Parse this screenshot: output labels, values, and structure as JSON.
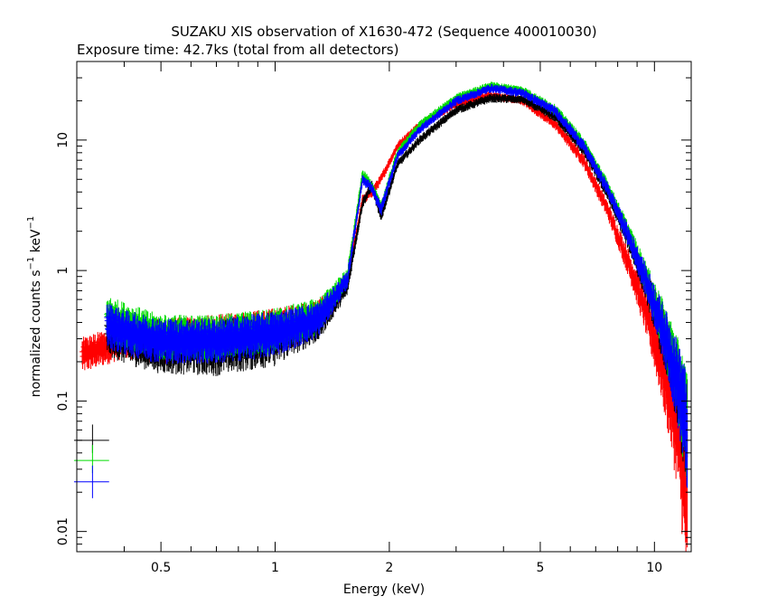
{
  "chart_data": {
    "type": "scatter",
    "title": "SUZAKU XIS observation of X1630-472 (Sequence 400010030)",
    "subtitle": "Exposure time: 42.7ks (total from all detectors)",
    "xlabel": "Energy (keV)",
    "ylabel": {
      "base": "normalized counts s",
      "exp1": "−1",
      "mid": " keV",
      "exp2": "−1"
    },
    "x_scale": "log",
    "y_scale": "log",
    "xlim": [
      0.3,
      12.5
    ],
    "ylim": [
      0.007,
      40
    ],
    "x_ticks": [
      {
        "value": 0.5,
        "label": "0.5"
      },
      {
        "value": 1,
        "label": "1"
      },
      {
        "value": 2,
        "label": "2"
      },
      {
        "value": 5,
        "label": "5"
      },
      {
        "value": 10,
        "label": "10"
      }
    ],
    "y_ticks": [
      {
        "value": 0.01,
        "label": "0.01"
      },
      {
        "value": 0.1,
        "label": "0.1"
      },
      {
        "value": 1,
        "label": "1"
      },
      {
        "value": 10,
        "label": "10"
      }
    ],
    "grid": false,
    "legend": "none",
    "series": [
      {
        "color": "#ff0000",
        "x": [
          0.31,
          0.35,
          0.4,
          0.5,
          0.7,
          1.0,
          1.3,
          1.55,
          1.7,
          1.8,
          1.9,
          2.1,
          2.4,
          3.0,
          3.7,
          4.5,
          5.5,
          6.5,
          7.5,
          8.5,
          9.5,
          10.5,
          11.5,
          12.2
        ],
        "y": [
          0.23,
          0.26,
          0.3,
          0.3,
          0.32,
          0.36,
          0.45,
          0.8,
          3.5,
          4.0,
          5.0,
          9.0,
          13.0,
          19.0,
          22.0,
          20.0,
          13.0,
          7.0,
          3.0,
          1.2,
          0.5,
          0.2,
          0.08,
          0.03
        ],
        "yerr_frac": [
          0.2,
          0.2,
          0.2,
          0.25,
          0.25,
          0.25,
          0.2,
          0.1,
          0.06,
          0.06,
          0.06,
          0.05,
          0.05,
          0.05,
          0.05,
          0.05,
          0.06,
          0.08,
          0.1,
          0.15,
          0.25,
          0.4,
          0.6,
          0.8
        ]
      },
      {
        "color": "#000000",
        "x": [
          0.36,
          0.4,
          0.5,
          0.7,
          1.0,
          1.3,
          1.55,
          1.7,
          1.8,
          1.9,
          2.1,
          2.4,
          3.0,
          3.7,
          4.5,
          5.5,
          6.5,
          7.5,
          8.5,
          9.5,
          10.5,
          11.5,
          12.2
        ],
        "y": [
          0.35,
          0.3,
          0.28,
          0.27,
          0.32,
          0.4,
          0.75,
          3.3,
          4.5,
          2.6,
          6.5,
          10.0,
          17.0,
          21.0,
          20.5,
          15.0,
          8.5,
          4.0,
          1.8,
          0.8,
          0.35,
          0.15,
          0.07
        ],
        "yerr_frac": [
          0.25,
          0.25,
          0.3,
          0.3,
          0.3,
          0.2,
          0.1,
          0.06,
          0.06,
          0.08,
          0.05,
          0.05,
          0.05,
          0.05,
          0.05,
          0.06,
          0.07,
          0.08,
          0.12,
          0.18,
          0.3,
          0.45,
          0.6
        ]
      },
      {
        "color": "#00dd00",
        "x": [
          0.36,
          0.4,
          0.5,
          0.7,
          1.0,
          1.3,
          1.55,
          1.7,
          1.8,
          1.9,
          2.1,
          2.4,
          3.0,
          3.7,
          4.5,
          5.5,
          6.5,
          7.5,
          8.5,
          9.5,
          10.5,
          11.5,
          12.2
        ],
        "y": [
          0.45,
          0.4,
          0.32,
          0.32,
          0.36,
          0.46,
          0.9,
          5.5,
          4.5,
          3.0,
          8.0,
          13.0,
          21.0,
          26.0,
          24.0,
          17.0,
          9.5,
          4.5,
          2.0,
          0.9,
          0.4,
          0.17,
          0.08
        ],
        "yerr_frac": [
          0.25,
          0.25,
          0.25,
          0.25,
          0.25,
          0.2,
          0.1,
          0.06,
          0.06,
          0.08,
          0.05,
          0.05,
          0.05,
          0.05,
          0.05,
          0.06,
          0.07,
          0.08,
          0.12,
          0.18,
          0.3,
          0.45,
          0.6
        ]
      },
      {
        "color": "#0000ff",
        "x": [
          0.36,
          0.4,
          0.5,
          0.7,
          1.0,
          1.3,
          1.55,
          1.7,
          1.8,
          1.9,
          2.1,
          2.4,
          3.0,
          3.7,
          4.5,
          5.5,
          6.5,
          7.5,
          8.5,
          9.5,
          10.5,
          11.5,
          12.2
        ],
        "y": [
          0.4,
          0.35,
          0.3,
          0.3,
          0.34,
          0.43,
          0.85,
          5.0,
          4.3,
          2.9,
          7.5,
          12.0,
          20.0,
          25.0,
          23.0,
          16.5,
          9.0,
          4.3,
          1.9,
          0.85,
          0.38,
          0.16,
          0.075
        ],
        "yerr_frac": [
          0.25,
          0.25,
          0.25,
          0.25,
          0.25,
          0.2,
          0.1,
          0.06,
          0.06,
          0.08,
          0.05,
          0.05,
          0.05,
          0.05,
          0.05,
          0.06,
          0.07,
          0.08,
          0.12,
          0.18,
          0.3,
          0.45,
          0.6
        ]
      }
    ],
    "error_markers": [
      {
        "color": "#000000",
        "x": 0.33,
        "y": 0.05,
        "xerr": 0.035,
        "y_low": 0.04,
        "y_high": 0.066
      },
      {
        "color": "#00dd00",
        "x": 0.33,
        "y": 0.035,
        "xerr": 0.035,
        "y_low": 0.028,
        "y_high": 0.046
      },
      {
        "color": "#0000ff",
        "x": 0.33,
        "y": 0.024,
        "xerr": 0.035,
        "y_low": 0.018,
        "y_high": 0.032
      }
    ]
  }
}
